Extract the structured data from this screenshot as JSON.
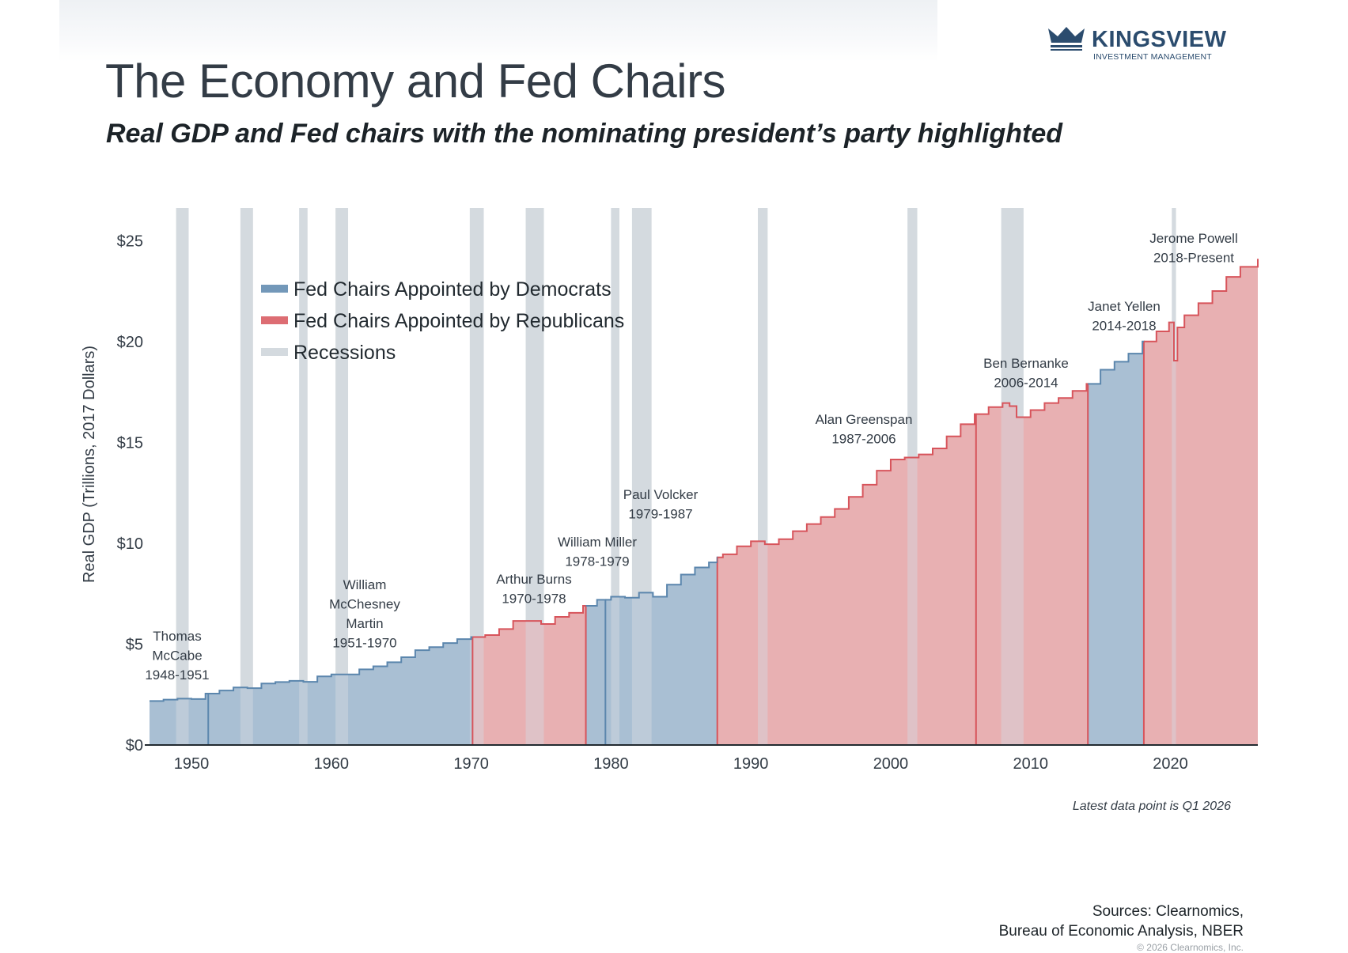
{
  "header": {
    "title": "The Economy and Fed Chairs",
    "subtitle": "Real GDP and Fed chairs with the nominating president’s party highlighted"
  },
  "logo": {
    "name": "KINGSVIEW",
    "tagline": "INVESTMENT MANAGEMENT",
    "color": "#2b4c6e",
    "icon": "crown-icon"
  },
  "footer": {
    "note": "Latest data point is Q1 2026",
    "sources_line1": "Sources: Clearnomics,",
    "sources_line2": "Bureau of Economic Analysis, NBER",
    "copyright": "© 2026 Clearnomics, Inc."
  },
  "chart_data": {
    "type": "area",
    "title": "The Economy and Fed Chairs",
    "subtitle": "Real GDP and Fed chairs with the nominating president’s party highlighted",
    "xlabel": "",
    "ylabel": "Real GDP (Trillions, 2017 Dollars)",
    "xlim": [
      1947,
      2026.25
    ],
    "ylim": [
      0,
      26.5
    ],
    "x_ticks": [
      1950,
      1960,
      1970,
      1980,
      1990,
      2000,
      2010,
      2020
    ],
    "x_tick_labels": [
      "1950",
      "1960",
      "1970",
      "1980",
      "1990",
      "2000",
      "2010",
      "2020"
    ],
    "y_ticks": [
      0,
      5,
      10,
      15,
      20,
      25
    ],
    "y_tick_labels": [
      "$0",
      "$5",
      "$10",
      "$15",
      "$20",
      "$25"
    ],
    "grid": false,
    "legend_position": "top-left",
    "legend": [
      {
        "label": "Fed Chairs Appointed by Democrats",
        "color": "#5b86ad"
      },
      {
        "label": "Fed Chairs Appointed by Republicans",
        "color": "#d7545b"
      },
      {
        "label": "Recessions",
        "color": "#d4dadf"
      }
    ],
    "colors": {
      "democrat_fill": "#a9bfd3",
      "democrat_line": "#5b86ad",
      "republican_fill": "#e8b0b2",
      "republican_line": "#d7545b",
      "recession": "#d4dadf",
      "axis": "#222a30"
    },
    "gdp_series": {
      "name": "Real GDP",
      "points": [
        [
          1947.0,
          2.18
        ],
        [
          1948.0,
          2.25
        ],
        [
          1949.0,
          2.3
        ],
        [
          1950.0,
          2.28
        ],
        [
          1951.0,
          2.55
        ],
        [
          1952.0,
          2.7
        ],
        [
          1953.0,
          2.85
        ],
        [
          1954.0,
          2.82
        ],
        [
          1955.0,
          3.05
        ],
        [
          1956.0,
          3.12
        ],
        [
          1957.0,
          3.18
        ],
        [
          1958.0,
          3.13
        ],
        [
          1959.0,
          3.4
        ],
        [
          1960.0,
          3.5
        ],
        [
          1961.0,
          3.5
        ],
        [
          1962.0,
          3.75
        ],
        [
          1963.0,
          3.9
        ],
        [
          1964.0,
          4.1
        ],
        [
          1965.0,
          4.35
        ],
        [
          1966.0,
          4.7
        ],
        [
          1967.0,
          4.85
        ],
        [
          1968.0,
          5.05
        ],
        [
          1969.0,
          5.25
        ],
        [
          1970.0,
          5.35
        ],
        [
          1971.0,
          5.45
        ],
        [
          1972.0,
          5.75
        ],
        [
          1973.0,
          6.15
        ],
        [
          1974.0,
          6.15
        ],
        [
          1975.0,
          6.0
        ],
        [
          1976.0,
          6.35
        ],
        [
          1977.0,
          6.55
        ],
        [
          1978.0,
          6.9
        ],
        [
          1979.0,
          7.2
        ],
        [
          1980.0,
          7.35
        ],
        [
          1981.0,
          7.3
        ],
        [
          1982.0,
          7.55
        ],
        [
          1983.0,
          7.35
        ],
        [
          1984.0,
          7.95
        ],
        [
          1985.0,
          8.45
        ],
        [
          1986.0,
          8.8
        ],
        [
          1987.0,
          9.05
        ],
        [
          1987.6,
          9.3
        ],
        [
          1988.0,
          9.45
        ],
        [
          1989.0,
          9.85
        ],
        [
          1990.0,
          10.1
        ],
        [
          1991.0,
          9.95
        ],
        [
          1992.0,
          10.2
        ],
        [
          1993.0,
          10.6
        ],
        [
          1994.0,
          10.95
        ],
        [
          1995.0,
          11.3
        ],
        [
          1996.0,
          11.7
        ],
        [
          1997.0,
          12.3
        ],
        [
          1998.0,
          12.9
        ],
        [
          1999.0,
          13.6
        ],
        [
          2000.0,
          14.15
        ],
        [
          2001.0,
          14.25
        ],
        [
          2002.0,
          14.4
        ],
        [
          2003.0,
          14.7
        ],
        [
          2004.0,
          15.3
        ],
        [
          2005.0,
          15.9
        ],
        [
          2006.0,
          16.4
        ],
        [
          2007.0,
          16.75
        ],
        [
          2008.0,
          16.95
        ],
        [
          2008.5,
          16.8
        ],
        [
          2009.0,
          16.25
        ],
        [
          2010.0,
          16.6
        ],
        [
          2011.0,
          16.95
        ],
        [
          2012.0,
          17.2
        ],
        [
          2013.0,
          17.55
        ],
        [
          2014.0,
          17.9
        ],
        [
          2015.0,
          18.6
        ],
        [
          2016.0,
          19.0
        ],
        [
          2017.0,
          19.4
        ],
        [
          2018.0,
          20.0
        ],
        [
          2019.0,
          20.5
        ],
        [
          2019.9,
          20.95
        ],
        [
          2020.25,
          19.05
        ],
        [
          2020.5,
          20.7
        ],
        [
          2021.0,
          21.3
        ],
        [
          2022.0,
          21.9
        ],
        [
          2023.0,
          22.5
        ],
        [
          2024.0,
          23.2
        ],
        [
          2025.0,
          23.7
        ],
        [
          2026.25,
          24.1
        ]
      ]
    },
    "chairs": [
      {
        "name": "Thomas McCabe",
        "years": "1948-1951",
        "label_lines": [
          "Thomas",
          "McCabe",
          "1948-1951"
        ],
        "start": 1947.0,
        "end": 1951.2,
        "party": "Democrat"
      },
      {
        "name": "William McChesney Martin",
        "years": "1951-1970",
        "label_lines": [
          "William",
          "McChesney",
          "Martin",
          "1951-1970"
        ],
        "start": 1951.2,
        "end": 1970.1,
        "party": "Democrat"
      },
      {
        "name": "Arthur Burns",
        "years": "1970-1978",
        "label_lines": [
          "Arthur Burns",
          "1970-1978"
        ],
        "start": 1970.1,
        "end": 1978.2,
        "party": "Republican"
      },
      {
        "name": "William Miller",
        "years": "1978-1979",
        "label_lines": [
          "William Miller",
          "1978-1979"
        ],
        "start": 1978.2,
        "end": 1979.6,
        "party": "Democrat"
      },
      {
        "name": "Paul Volcker",
        "years": "1979-1987",
        "label_lines": [
          "Paul Volcker",
          "1979-1987"
        ],
        "start": 1979.6,
        "end": 1987.6,
        "party": "Democrat"
      },
      {
        "name": "Alan Greenspan",
        "years": "1987-2006",
        "label_lines": [
          "Alan Greenspan",
          "1987-2006"
        ],
        "start": 1987.6,
        "end": 2006.1,
        "party": "Republican"
      },
      {
        "name": "Ben Bernanke",
        "years": "2006-2014",
        "label_lines": [
          "Ben Bernanke",
          "2006-2014"
        ],
        "start": 2006.1,
        "end": 2014.1,
        "party": "Republican"
      },
      {
        "name": "Janet Yellen",
        "years": "2014-2018",
        "label_lines": [
          "Janet Yellen",
          "2014-2018"
        ],
        "start": 2014.1,
        "end": 2018.1,
        "party": "Democrat"
      },
      {
        "name": "Jerome Powell",
        "years": "2018-Present",
        "label_lines": [
          "Jerome Powell",
          "2018-Present"
        ],
        "start": 2018.1,
        "end": 2026.25,
        "party": "Republican"
      }
    ],
    "recessions": [
      [
        1948.9,
        1949.8
      ],
      [
        1953.5,
        1954.4
      ],
      [
        1957.7,
        1958.3
      ],
      [
        1960.3,
        1961.2
      ],
      [
        1969.9,
        1970.9
      ],
      [
        1973.9,
        1975.2
      ],
      [
        1980.0,
        1980.6
      ],
      [
        1981.5,
        1982.9
      ],
      [
        1990.5,
        1991.2
      ],
      [
        2001.2,
        2001.9
      ],
      [
        2007.9,
        2009.5
      ],
      [
        2020.1,
        2020.4
      ]
    ]
  }
}
